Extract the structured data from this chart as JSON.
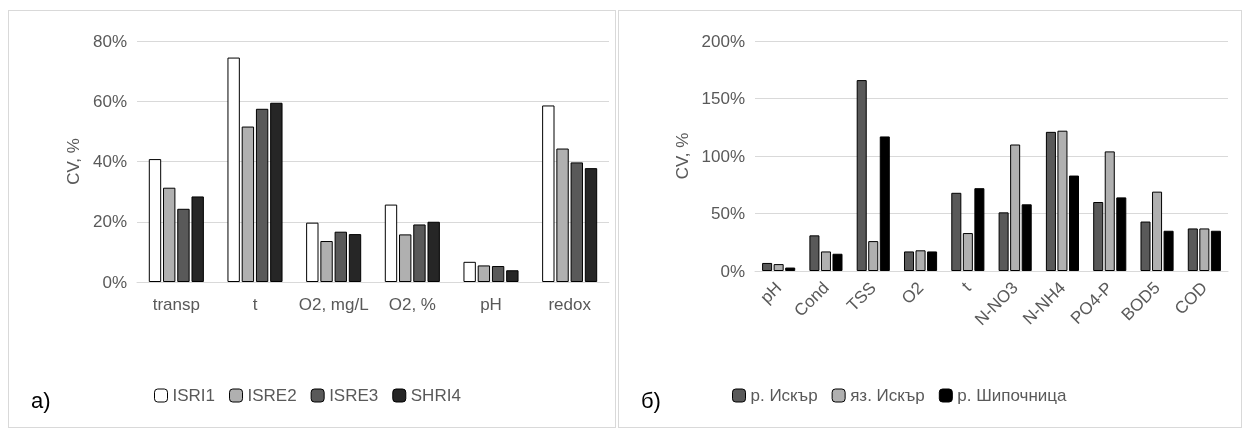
{
  "chart_data": [
    {
      "type": "bar",
      "ylabel": "CV, %",
      "annotations": [
        "a)"
      ],
      "categories": [
        "transp",
        "t",
        "O2, mg/L",
        "O2, %",
        "pH",
        "redox"
      ],
      "series": [
        {
          "name": "ISRI1",
          "color": "#ffffff",
          "values": [
            40.8,
            74.5,
            19.7,
            25.7,
            6.7,
            58.6
          ]
        },
        {
          "name": "ISRE2",
          "color": "#b0b0b0",
          "values": [
            31.3,
            51.6,
            13.6,
            15.8,
            5.5,
            44.3
          ]
        },
        {
          "name": "ISRE3",
          "color": "#595959",
          "values": [
            24.3,
            57.5,
            16.7,
            19.1,
            5.3,
            39.7
          ]
        },
        {
          "name": "SHRI4",
          "color": "#262626",
          "values": [
            28.4,
            59.5,
            15.9,
            20,
            3.9,
            37.8
          ]
        }
      ],
      "ylim": [
        0,
        80
      ],
      "yticks": [
        {
          "value": 0,
          "label": "0%"
        },
        {
          "value": 20,
          "label": "20%"
        },
        {
          "value": 40,
          "label": "40%"
        },
        {
          "value": 60,
          "label": "60%"
        },
        {
          "value": 80,
          "label": "80%"
        }
      ],
      "grid": "y",
      "legend": "bottom"
    },
    {
      "type": "bar",
      "ylabel": "CV, %",
      "annotations": [
        "б)"
      ],
      "categories": [
        "pH",
        "Cond",
        "TSS",
        "O2",
        "t",
        "N-NO3",
        "N-NH4",
        "PO4-P",
        "BOD5",
        "COD"
      ],
      "series": [
        {
          "name": "р. Искър",
          "color": "#595959",
          "values": [
            7,
            31,
            166,
            17,
            68,
            51,
            121,
            60,
            43,
            37
          ]
        },
        {
          "name": "яз. Искър",
          "color": "#b0b0b0",
          "values": [
            6,
            17,
            26,
            18,
            33,
            110,
            122,
            104,
            69,
            37
          ]
        },
        {
          "name": "р. Шипочница",
          "color": "#000000",
          "values": [
            3,
            15,
            117,
            17,
            72,
            58,
            83,
            64,
            35,
            35
          ]
        }
      ],
      "ylim": [
        0,
        200
      ],
      "yticks": [
        {
          "value": 0,
          "label": "0%"
        },
        {
          "value": 50,
          "label": "50%"
        },
        {
          "value": 100,
          "label": "100%"
        },
        {
          "value": 150,
          "label": "150%"
        },
        {
          "value": 200,
          "label": "200%"
        }
      ],
      "grid": "y",
      "legend": "bottom"
    }
  ]
}
